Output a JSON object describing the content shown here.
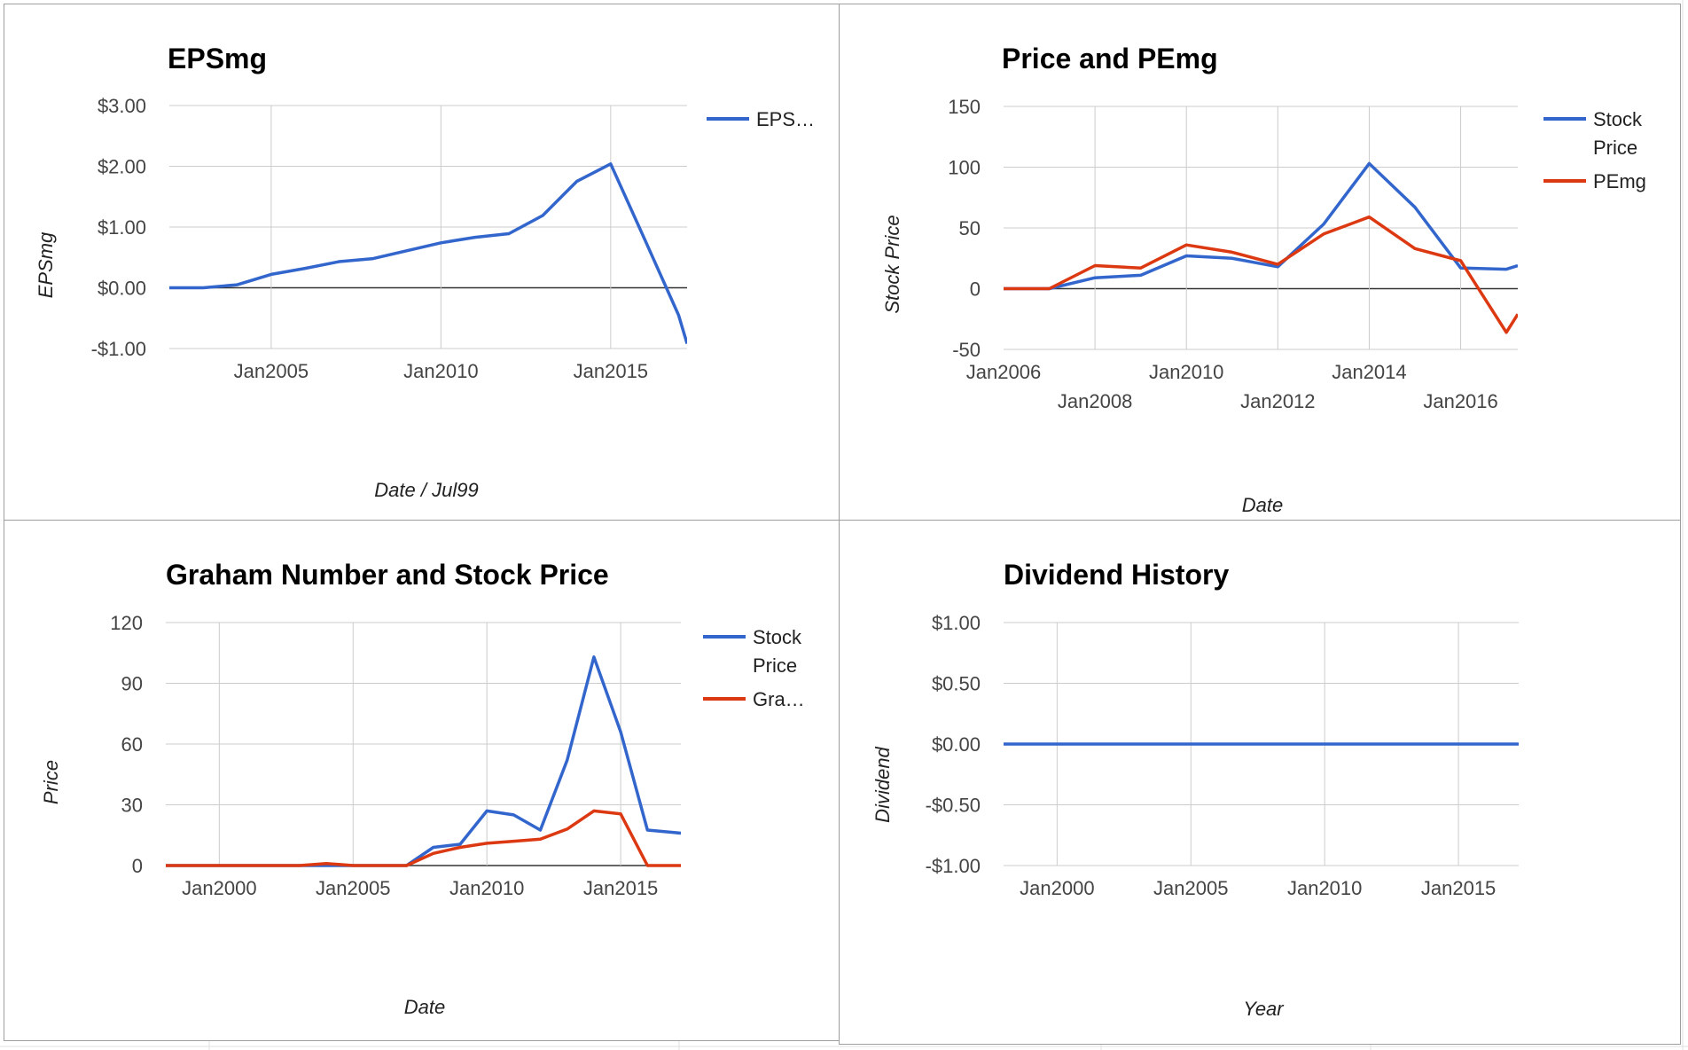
{
  "chart_data": [
    {
      "type": "line",
      "title": "EPSmg",
      "xlabel": "Date / Jul99",
      "ylabel": "EPSmg",
      "x_range": [
        "2002-01-01",
        "2017-04-01"
      ],
      "ylim": [
        -1,
        3
      ],
      "y_ticks": [
        3,
        2,
        1,
        0,
        -1
      ],
      "y_tick_labels": [
        "$3.00",
        "$2.00",
        "$1.00",
        "$0.00",
        "-$1.00"
      ],
      "x_ticks": [
        "2005-01-01",
        "2010-01-01",
        "2015-01-01"
      ],
      "x_tick_labels": [
        "Jan2005",
        "Jan2010",
        "Jan2015"
      ],
      "grid": true,
      "legend_position": "right",
      "series": [
        {
          "name": "EPS…",
          "color": "#3366cc",
          "points": [
            [
              "2002-01-01",
              0
            ],
            [
              "2003-01-01",
              0
            ],
            [
              "2004-01-01",
              0.05
            ],
            [
              "2005-01-01",
              0.22
            ],
            [
              "2006-01-01",
              0.32
            ],
            [
              "2007-01-01",
              0.43
            ],
            [
              "2008-01-01",
              0.48
            ],
            [
              "2009-01-01",
              0.61
            ],
            [
              "2010-01-01",
              0.74
            ],
            [
              "2011-01-01",
              0.83
            ],
            [
              "2012-01-01",
              0.89
            ],
            [
              "2013-01-01",
              1.19
            ],
            [
              "2014-01-01",
              1.75
            ],
            [
              "2015-01-01",
              2.04
            ],
            [
              "2016-01-01",
              0.8
            ],
            [
              "2017-01-01",
              -0.45
            ],
            [
              "2017-04-01",
              -0.92
            ]
          ]
        }
      ]
    },
    {
      "type": "line",
      "title": "Price and PEmg",
      "xlabel": "Date",
      "ylabel": "Stock Price",
      "x_range": [
        "2006-01-01",
        "2017-04-01"
      ],
      "ylim": [
        -50,
        150
      ],
      "y_ticks": [
        150,
        100,
        50,
        0,
        -50
      ],
      "y_tick_labels": [
        "150",
        "100",
        "50",
        "0",
        "-50"
      ],
      "x_ticks": [
        "2006-01-01",
        "2008-01-01",
        "2010-01-01",
        "2012-01-01",
        "2014-01-01",
        "2016-01-01"
      ],
      "x_tick_labels": [
        "Jan2006",
        "Jan2008",
        "Jan2010",
        "Jan2012",
        "Jan2014",
        "Jan2016"
      ],
      "grid": true,
      "legend_position": "right",
      "series": [
        {
          "name": "Stock Price",
          "color": "#3366cc",
          "points": [
            [
              "2006-01-01",
              0
            ],
            [
              "2007-01-01",
              0
            ],
            [
              "2008-01-01",
              9
            ],
            [
              "2009-01-01",
              11
            ],
            [
              "2010-01-01",
              27
            ],
            [
              "2011-01-01",
              25
            ],
            [
              "2012-01-01",
              18
            ],
            [
              "2013-01-01",
              53
            ],
            [
              "2014-01-01",
              103
            ],
            [
              "2015-01-01",
              67
            ],
            [
              "2016-01-01",
              17
            ],
            [
              "2017-01-01",
              16
            ],
            [
              "2017-04-01",
              19
            ]
          ]
        },
        {
          "name": "PEmg",
          "color": "#dc3912",
          "points": [
            [
              "2006-01-01",
              0
            ],
            [
              "2007-01-01",
              0
            ],
            [
              "2008-01-01",
              19
            ],
            [
              "2009-01-01",
              17
            ],
            [
              "2010-01-01",
              36
            ],
            [
              "2011-01-01",
              30
            ],
            [
              "2012-01-01",
              20
            ],
            [
              "2013-01-01",
              45
            ],
            [
              "2014-01-01",
              59
            ],
            [
              "2015-01-01",
              33
            ],
            [
              "2016-01-01",
              23
            ],
            [
              "2017-01-01",
              -36
            ],
            [
              "2017-04-01",
              -21
            ]
          ]
        }
      ]
    },
    {
      "type": "line",
      "title": "Graham Number and Stock Price",
      "xlabel": "Date",
      "ylabel": "Price",
      "x_range": [
        "1998-01-01",
        "2017-04-01"
      ],
      "ylim": [
        0,
        120
      ],
      "y_ticks": [
        120,
        90,
        60,
        30,
        0
      ],
      "y_tick_labels": [
        "120",
        "90",
        "60",
        "30",
        "0"
      ],
      "x_ticks": [
        "2000-01-01",
        "2005-01-01",
        "2010-01-01",
        "2015-01-01"
      ],
      "x_tick_labels": [
        "Jan2000",
        "Jan2005",
        "Jan2010",
        "Jan2015"
      ],
      "grid": true,
      "legend_position": "right",
      "series": [
        {
          "name": "Stock Price",
          "color": "#3366cc",
          "points": [
            [
              "1998-01-01",
              0
            ],
            [
              "2007-01-01",
              0
            ],
            [
              "2008-01-01",
              9
            ],
            [
              "2009-01-01",
              10.5
            ],
            [
              "2010-01-01",
              27
            ],
            [
              "2011-01-01",
              25
            ],
            [
              "2012-01-01",
              17.5
            ],
            [
              "2013-01-01",
              52
            ],
            [
              "2014-01-01",
              103
            ],
            [
              "2015-01-01",
              66
            ],
            [
              "2016-01-01",
              17.5
            ],
            [
              "2017-04-01",
              16
            ]
          ]
        },
        {
          "name": "Gra…",
          "color": "#dc3912",
          "points": [
            [
              "1998-01-01",
              0
            ],
            [
              "2003-01-01",
              0
            ],
            [
              "2004-01-01",
              1
            ],
            [
              "2005-01-01",
              0
            ],
            [
              "2007-01-01",
              0
            ],
            [
              "2008-01-01",
              6
            ],
            [
              "2009-01-01",
              9
            ],
            [
              "2010-01-01",
              11
            ],
            [
              "2011-01-01",
              12
            ],
            [
              "2012-01-01",
              13
            ],
            [
              "2013-01-01",
              18
            ],
            [
              "2014-01-01",
              27
            ],
            [
              "2015-01-01",
              25.5
            ],
            [
              "2016-01-01",
              0
            ],
            [
              "2017-04-01",
              0
            ]
          ]
        }
      ]
    },
    {
      "type": "line",
      "title": "Dividend History",
      "xlabel": "Year",
      "ylabel": "Dividend",
      "x_range": [
        "1998-01-01",
        "2017-04-01"
      ],
      "ylim": [
        -1,
        1
      ],
      "y_ticks": [
        1,
        0.5,
        0,
        -0.5,
        -1
      ],
      "y_tick_labels": [
        "$1.00",
        "$0.50",
        "$0.00",
        "-$0.50",
        "-$1.00"
      ],
      "x_ticks": [
        "2000-01-01",
        "2005-01-01",
        "2010-01-01",
        "2015-01-01"
      ],
      "x_tick_labels": [
        "Jan2000",
        "Jan2005",
        "Jan2010",
        "Jan2015"
      ],
      "grid": true,
      "legend_position": "none",
      "series": [
        {
          "color": "#3366cc",
          "points": [
            [
              "1998-01-01",
              0
            ],
            [
              "2017-04-01",
              0
            ]
          ]
        }
      ]
    }
  ]
}
